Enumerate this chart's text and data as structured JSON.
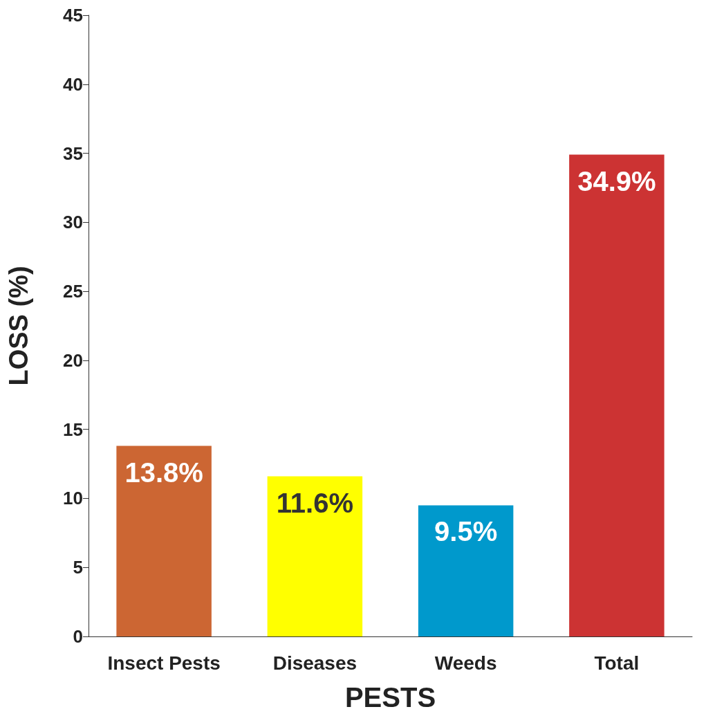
{
  "chart_data": {
    "type": "bar",
    "xlabel": "PESTS",
    "ylabel": "LOSS (%)",
    "categories": [
      "Insect Pests",
      "Diseases",
      "Weeds",
      "Total"
    ],
    "values": [
      13.8,
      11.6,
      9.5,
      34.9
    ],
    "colors": [
      "#cc6633",
      "#ffff00",
      "#0099cc",
      "#cc3333"
    ],
    "value_labels": [
      "13.8%",
      "11.6%",
      "9.5%",
      "34.9%"
    ],
    "ylim": [
      0,
      45
    ],
    "yticks": [
      0,
      5,
      10,
      15,
      20,
      25,
      30,
      35,
      40,
      45
    ],
    "grid": false
  }
}
